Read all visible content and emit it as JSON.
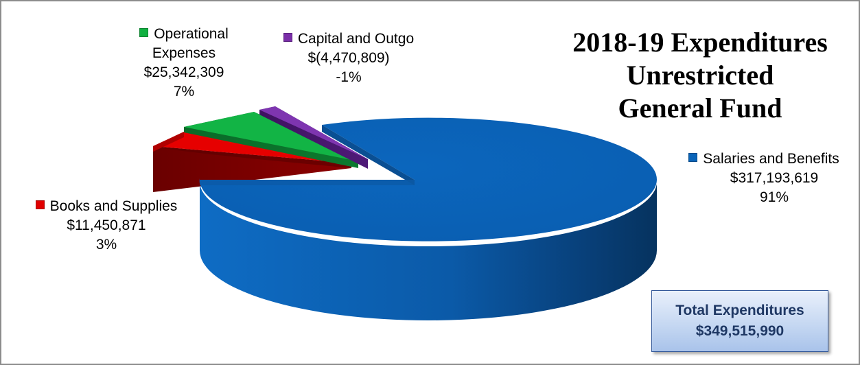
{
  "chart_data": {
    "type": "pie",
    "title": [
      "2018-19 Expenditures",
      "Unrestricted",
      "General Fund"
    ],
    "legend_placement": "beside-slices",
    "slices": [
      {
        "name": "Salaries and Benefits",
        "value": 317193619,
        "value_label": "$317,193,619",
        "percent_label": "91%",
        "color": "#0a64b8"
      },
      {
        "name": "Books and Supplies",
        "value": 11450871,
        "value_label": "$11,450,871",
        "percent_label": "3%",
        "color": "#e00000"
      },
      {
        "name": "Operational Expenses",
        "name_lines": [
          "Operational",
          "Expenses"
        ],
        "value": 25342309,
        "value_label": "$25,342,309",
        "percent_label": "7%",
        "color": "#10b040"
      },
      {
        "name": "Capital and Outgo",
        "value": -4470809,
        "value_label": "$(4,470,809)",
        "percent_label": "-1%",
        "color": "#7a2ea8"
      }
    ],
    "total": {
      "label": "Total Expenditures",
      "value": 349515990,
      "value_label": "$349,515,990"
    }
  }
}
